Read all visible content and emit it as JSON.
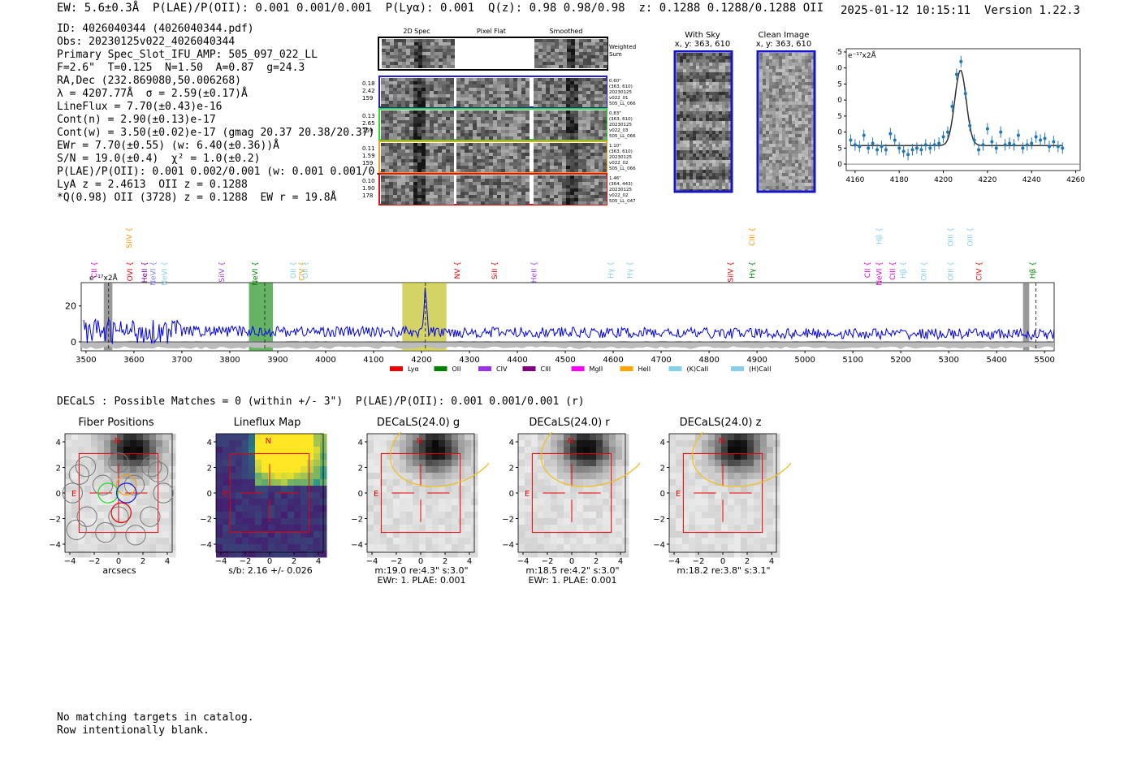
{
  "header": {
    "ew": "EW: 5.6±0.3Å  P(LAE)/P(OII): 0.001 0.001/0.001  P(Lyα): 0.001  Q(z): 0.98 0.98/0.98  z: 0.1288 0.1288/0.1288 OII",
    "timestamp": "2025-01-12 10:15:11",
    "version": "Version 1.22.3"
  },
  "info_lines": [
    "ID: 4026040344 (4026040344.pdf)",
    "Obs: 20230125v022_4026040344",
    "Primary Spec_Slot_IFU_AMP: 505_097_022_LL",
    "F=2.6\"  T=0.125  N=1.50  A=0.87  g=24.3",
    "RA,Dec (232.869080,50.006268)",
    "λ = 4207.77Å  σ = 2.59(±0.17)Å",
    "LineFlux = 7.70(±0.43)e-16",
    "Cont(n) = 2.90(±0.13)e-17",
    "Cont(w) = 3.50(±0.02)e-17 (gmag 20.37 20.38/20.37)",
    "EWr = 7.70(±0.55) (w: 6.40(±0.36))Å",
    "S/N = 19.0(±0.4)  χ² = 1.0(±0.2)",
    "P(LAE)/P(OII): 0.001 0.002/0.001 (w: 0.001 0.001/0.001)",
    "LyA z = 2.4613  OII z = 0.1288",
    "*Q(0.98) OII (3728) z = 0.1288  EW r = 19.8Å"
  ],
  "cutouts": {
    "col_titles": [
      "2D Spec",
      "Pixel Flat",
      "Smoothed"
    ],
    "weighted_label": "Weighted Sum",
    "rows": [
      {
        "left": [
          "0.18",
          "2.42",
          "159"
        ],
        "right": [
          "0.60\"",
          "(363, 610)",
          "20230125",
          "v022_01",
          "505_LL_066"
        ],
        "color": "#1f1fd0"
      },
      {
        "left": [
          "0.13",
          "2.65",
          "159"
        ],
        "right": [
          "0.83\"",
          "(363, 610)",
          "20230125",
          "v022_03",
          "505_LL_066"
        ],
        "color": "#22dd22"
      },
      {
        "left": [
          "0.11",
          "1.59",
          "159"
        ],
        "right": [
          "1.10\"",
          "(363, 610)",
          "20230125",
          "v022_02",
          "505_LL_066"
        ],
        "color": "#f0a020"
      },
      {
        "left": [
          "0.10",
          "1.90",
          "178"
        ],
        "right": [
          "1.46\"",
          "(364, 443)",
          "20230125",
          "v022_02",
          "505_LL_047"
        ],
        "color": "#e01010"
      }
    ]
  },
  "sky_panels": {
    "with_sky": "With Sky",
    "with_sky_coord": "x, y: 363, 610",
    "clean": "Clean Image",
    "clean_coord": "x, y: 363, 610"
  },
  "chart_data": [
    {
      "type": "scatter",
      "title": "",
      "ylabel": "e⁻¹⁷x2Å",
      "xlim": [
        4156,
        4262
      ],
      "ylim": [
        -2,
        36
      ],
      "xticks": [
        4160,
        4180,
        4200,
        4220,
        4240,
        4260
      ],
      "yticks": [
        0,
        5,
        10,
        15,
        20,
        25,
        30,
        35
      ],
      "x": [
        4158,
        4160,
        4162,
        4164,
        4166,
        4168,
        4170,
        4172,
        4174,
        4176,
        4178,
        4180,
        4182,
        4184,
        4186,
        4188,
        4190,
        4192,
        4194,
        4196,
        4198,
        4200,
        4202,
        4204,
        4206,
        4208,
        4210,
        4212,
        4214,
        4216,
        4218,
        4220,
        4222,
        4224,
        4226,
        4228,
        4230,
        4232,
        4234,
        4236,
        4238,
        4240,
        4242,
        4244,
        4246,
        4248,
        4250,
        4252,
        4254
      ],
      "y": [
        7.5,
        6.0,
        5.5,
        9.0,
        5.0,
        6.5,
        4.5,
        5.5,
        4.5,
        9.5,
        7.5,
        5.0,
        4.0,
        3.0,
        4.5,
        5.0,
        4.5,
        6.0,
        5.0,
        6.0,
        6.5,
        8.5,
        10.0,
        18.0,
        28.0,
        32.0,
        22.0,
        12.0,
        7.5,
        4.5,
        6.0,
        11.0,
        7.0,
        5.0,
        10.0,
        6.0,
        6.5,
        6.0,
        9.0,
        5.0,
        6.0,
        6.5,
        8.5,
        7.5,
        8.0,
        5.5,
        7.0,
        5.5,
        5.0
      ],
      "fit": {
        "continuum": 5.8,
        "center": 4207.77,
        "sigma": 2.59,
        "amplitude": 23.5
      }
    },
    {
      "type": "line",
      "ylabel": "e⁻¹⁷x2Å",
      "xlim": [
        3490,
        5520
      ],
      "ylim": [
        -5,
        33
      ],
      "xticks": [
        3500,
        3600,
        3700,
        3800,
        3900,
        4000,
        4100,
        4200,
        4300,
        4400,
        4500,
        4600,
        4700,
        4800,
        4900,
        5000,
        5100,
        5200,
        5300,
        5400,
        5500
      ],
      "yticks": [
        0,
        20
      ],
      "peak": {
        "x": 4208,
        "y": 30
      },
      "bands": [
        {
          "from": 3840,
          "to": 3890,
          "color": "#008000"
        },
        {
          "from": 4160,
          "to": 4252,
          "color": "#b5b500"
        },
        {
          "from": 3537,
          "to": 3555,
          "color": "#808080"
        },
        {
          "from": 5455,
          "to": 5468,
          "color": "#808080"
        }
      ],
      "dashed_lines": [
        3547,
        3873,
        4208,
        5482
      ],
      "line_labels": [
        {
          "name": "CII",
          "x": 3522,
          "color": "#e000e0",
          "row": 1
        },
        {
          "name": "SiIV",
          "x": 3595,
          "color": "#ff9900",
          "row": 0
        },
        {
          "name": "OVI",
          "x": 3597,
          "color": "#e00000",
          "row": 1
        },
        {
          "name": "HeII",
          "x": 3627,
          "color": "#8000a0",
          "row": 1
        },
        {
          "name": "NeVI",
          "x": 3645,
          "color": "#8080ff",
          "row": 1
        },
        {
          "name": "NeVI",
          "x": 3669,
          "color": "#87ceeb",
          "row": 1
        },
        {
          "name": "SiIV",
          "x": 3788,
          "color": "#a040e0",
          "row": 1
        },
        {
          "name": "NeVI",
          "x": 3858,
          "color": "#008000",
          "row": 1
        },
        {
          "name": "OII",
          "x": 3937,
          "color": "#87ceeb",
          "row": 1
        },
        {
          "name": "CIV",
          "x": 3955,
          "color": "#ff9900",
          "row": 1
        },
        {
          "name": "OII",
          "x": 3963,
          "color": "#87ceeb",
          "row": 1
        },
        {
          "name": "NV",
          "x": 4280,
          "color": "#e00000",
          "row": 1
        },
        {
          "name": "SiII",
          "x": 4358,
          "color": "#e00000",
          "row": 1
        },
        {
          "name": "HeII",
          "x": 4440,
          "color": "#a040e0",
          "row": 1
        },
        {
          "name": "Hγ",
          "x": 4600,
          "color": "#87ceeb",
          "row": 1
        },
        {
          "name": "Hγ",
          "x": 4640,
          "color": "#87ceeb",
          "row": 1
        },
        {
          "name": "SiIV",
          "x": 4850,
          "color": "#e00000",
          "row": 1
        },
        {
          "name": "CIII",
          "x": 4895,
          "color": "#ff9900",
          "row": 0
        },
        {
          "name": "Hγ",
          "x": 4895,
          "color": "#008000",
          "row": 1
        },
        {
          "name": "CII",
          "x": 5135,
          "color": "#e000e0",
          "row": 1
        },
        {
          "name": "Hβ",
          "x": 5160,
          "color": "#87ceeb",
          "row": 0
        },
        {
          "name": "NeVI",
          "x": 5160,
          "color": "#e000e0",
          "row": 1
        },
        {
          "name": "CIII",
          "x": 5188,
          "color": "#e000e0",
          "row": 1
        },
        {
          "name": "Hβ",
          "x": 5210,
          "color": "#87ceeb",
          "row": 1
        },
        {
          "name": "OIII",
          "x": 5253,
          "color": "#87ceeb",
          "row": 1
        },
        {
          "name": "OIII",
          "x": 5309,
          "color": "#87ceeb",
          "row": 0
        },
        {
          "name": "OIII",
          "x": 5309,
          "color": "#87ceeb",
          "row": 1
        },
        {
          "name": "OIII",
          "x": 5350,
          "color": "#87ceeb",
          "row": 0
        },
        {
          "name": "CIV",
          "x": 5368,
          "color": "#e00000",
          "row": 1
        },
        {
          "name": "Hβ",
          "x": 5480,
          "color": "#008000",
          "row": 1
        }
      ],
      "legend": [
        {
          "label": "Lyα",
          "color": "#ee0000"
        },
        {
          "label": "OII",
          "color": "#008000"
        },
        {
          "label": "CIV",
          "color": "#9a32e6"
        },
        {
          "label": "CIII",
          "color": "#800080"
        },
        {
          "label": "MgII",
          "color": "#ff00ff"
        },
        {
          "label": "HeII",
          "color": "#ffa500"
        },
        {
          "label": "(K)CaII",
          "color": "#87ceeb"
        },
        {
          "label": "(H)CaII",
          "color": "#87ceeb"
        }
      ]
    }
  ],
  "decals_line": "DECaLS : Possible Matches = 0 (within +/- 3\")  P(LAE)/P(OII): 0.001 0.001/0.001 (r)",
  "mini_panels": [
    {
      "title": "Fiber Positions",
      "caption": [
        "arcsecs"
      ],
      "type": "fibers"
    },
    {
      "title": "Lineflux Map",
      "caption": [
        "s/b: 2.16 +/- 0.026"
      ],
      "type": "lineflux"
    },
    {
      "title": "DECaLS(24.0) g",
      "caption": [
        "m:19.0  re:4.3\"  s:3.0\"",
        "EWr: 1. PLAE: 0.001"
      ],
      "type": "decals"
    },
    {
      "title": "DECaLS(24.0) r",
      "caption": [
        "m:18.5  re:4.2\"  s:3.0\"",
        "EWr: 1. PLAE: 0.001"
      ],
      "type": "decals"
    },
    {
      "title": "DECaLS(24.0) z",
      "caption": [
        "m:18.2  re:3.8\"  s:3.1\""
      ],
      "type": "decals"
    }
  ],
  "mini_axis": {
    "xticks": [
      "−4",
      "−2",
      "0",
      "2",
      "4"
    ],
    "yticks": [
      "4",
      "2",
      "0",
      "−2",
      "−4"
    ],
    "n_label": "N",
    "e_label": "E"
  },
  "footer": [
    "No matching targets in catalog.",
    "Row intentionally blank."
  ]
}
